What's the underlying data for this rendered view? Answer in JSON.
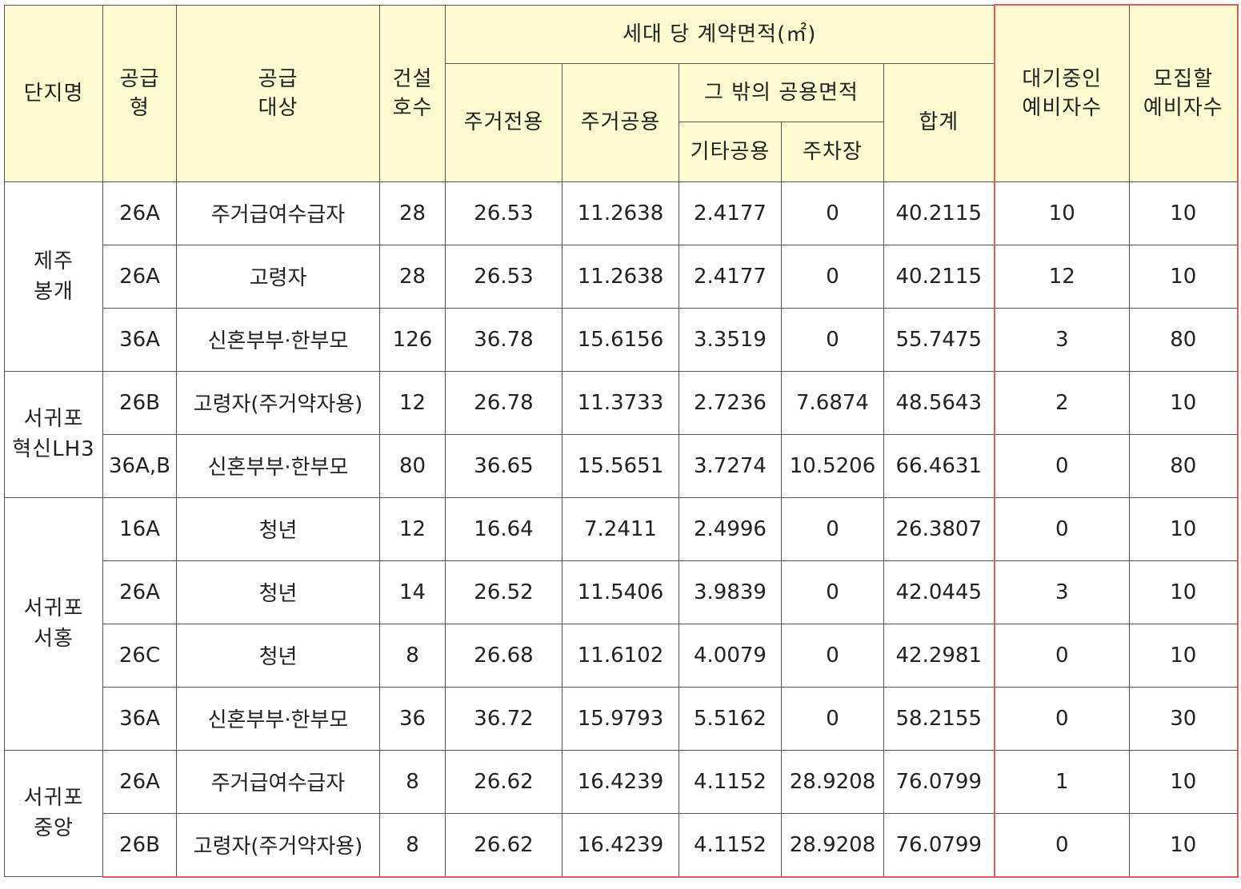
{
  "header": {
    "complex": "단지명",
    "supply_type": "공급\n형",
    "supply_target": "공급\n대상",
    "construction_units": "건설\n호수",
    "contract_area_group": "세대 당 계약면적(㎡)",
    "residential_exclusive": "주거전용",
    "residential_common": "주거공용",
    "other_common_group": "그 밖의 공용면적",
    "other_common": "기타공용",
    "parking": "주차장",
    "total": "합계",
    "waiting_reserve": "대기중인\n예비자수",
    "recruit_reserve": "모집할\n예비자수"
  },
  "groups": [
    {
      "complex": "제주\n봉개",
      "rows": [
        [
          "26A",
          "주거급여수급자",
          "28",
          "26.53",
          "11.2638",
          "2.4177",
          "0",
          "40.2115",
          "10",
          "10"
        ],
        [
          "26A",
          "고령자",
          "28",
          "26.53",
          "11.2638",
          "2.4177",
          "0",
          "40.2115",
          "12",
          "10"
        ],
        [
          "36A",
          "신혼부부·한부모",
          "126",
          "36.78",
          "15.6156",
          "3.3519",
          "0",
          "55.7475",
          "3",
          "80"
        ]
      ]
    },
    {
      "complex": "서귀포\n혁신LH3",
      "rows": [
        [
          "26B",
          "고령자(주거약자용)",
          "12",
          "26.78",
          "11.3733",
          "2.7236",
          "7.6874",
          "48.5643",
          "2",
          "10"
        ],
        [
          "36A,B",
          "신혼부부·한부모",
          "80",
          "36.65",
          "15.5651",
          "3.7274",
          "10.5206",
          "66.4631",
          "0",
          "80"
        ]
      ]
    },
    {
      "complex": "서귀포\n서홍",
      "rows": [
        [
          "16A",
          "청년",
          "12",
          "16.64",
          "7.2411",
          "2.4996",
          "0",
          "26.3807",
          "0",
          "10"
        ],
        [
          "26A",
          "청년",
          "14",
          "26.52",
          "11.5406",
          "3.9839",
          "0",
          "42.0445",
          "3",
          "10"
        ],
        [
          "26C",
          "청년",
          "8",
          "26.68",
          "11.6102",
          "4.0079",
          "0",
          "42.2981",
          "0",
          "10"
        ],
        [
          "36A",
          "신혼부부·한부모",
          "36",
          "36.72",
          "15.9793",
          "5.5162",
          "0",
          "58.2155",
          "0",
          "30"
        ]
      ]
    },
    {
      "complex": "서귀포\n중앙",
      "rows": [
        [
          "26A",
          "주거급여수급자",
          "8",
          "26.62",
          "16.4239",
          "4.1152",
          "28.9208",
          "76.0799",
          "1",
          "10"
        ],
        [
          "26B",
          "고령자(주거약자용)",
          "8",
          "26.62",
          "16.4239",
          "4.1152",
          "28.9208",
          "76.0799",
          "0",
          "10"
        ]
      ]
    }
  ],
  "colors": {
    "header_bg": "#fcfbd2",
    "border": "#555555",
    "accent_red": "#e25a5a"
  }
}
